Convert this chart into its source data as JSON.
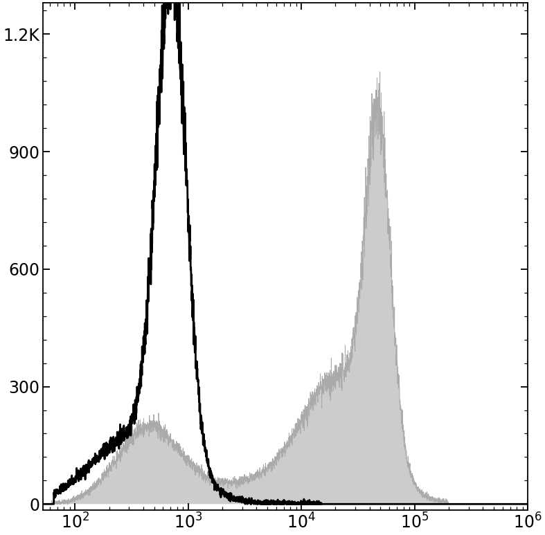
{
  "title": "",
  "xlabel": "",
  "ylabel": "",
  "xlim": [
    52,
    1000000
  ],
  "ylim": [
    -15,
    1280
  ],
  "ytick_vals": [
    0,
    300,
    600,
    900,
    1200
  ],
  "ytick_labels": [
    "0",
    "300",
    "600",
    "900",
    "1.2K"
  ],
  "xtick_vals": [
    100,
    1000,
    10000,
    100000,
    1000000
  ],
  "xtick_labels": [
    "$10^2$",
    "$10^3$",
    "$10^4$",
    "$10^5$",
    "$10^6$"
  ],
  "background_color": "#ffffff",
  "black_hist_color": "#000000",
  "gray_hist_facecolor": "#cccccc",
  "gray_hist_edgecolor": "#aaaaaa",
  "black_peak_log": 2.85,
  "black_peak_y": 1240,
  "black_peak_sig": 0.13,
  "black_base_log": 2.55,
  "black_base_y": 180,
  "black_base_sig": 0.38,
  "gray_peak1_log": 4.68,
  "gray_peak1_y": 820,
  "gray_peak1_sig": 0.11,
  "gray_shoulder_log": 4.35,
  "gray_shoulder_y": 300,
  "gray_shoulder_sig": 0.32,
  "gray_low_log": 2.65,
  "gray_low_y": 190,
  "gray_low_sig": 0.28,
  "gray_mid_log": 3.7,
  "gray_mid_y": 55,
  "gray_mid_sig": 0.55,
  "noise_seed": 42,
  "noise_factor": 0.045,
  "noise_base": 3.5,
  "n_points": 3000
}
